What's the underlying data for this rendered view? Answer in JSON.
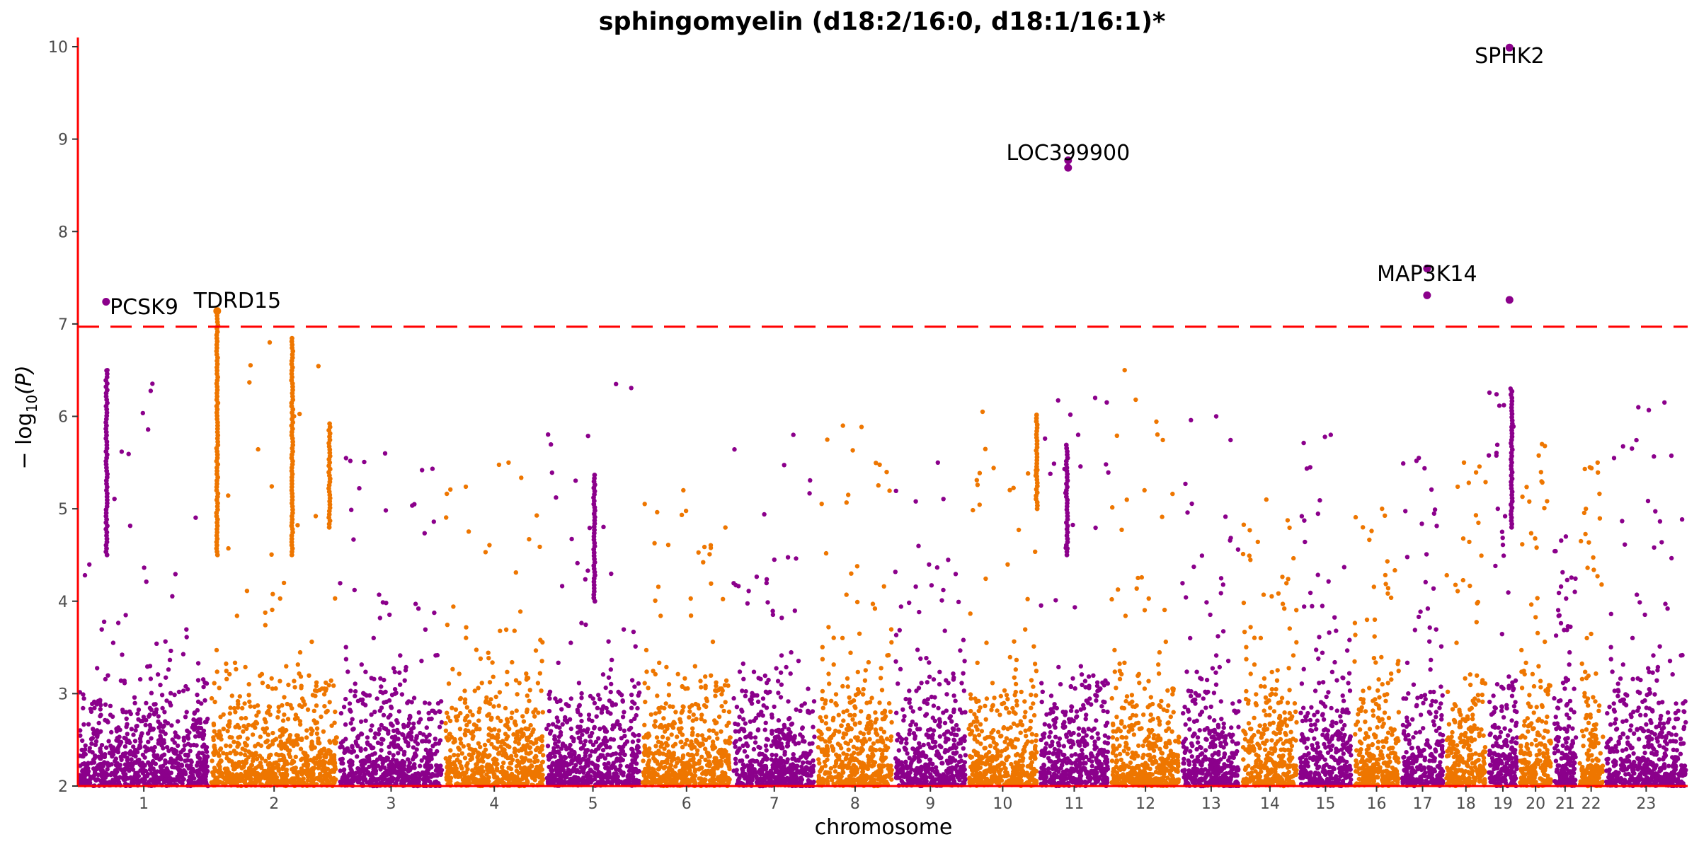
{
  "chart_data": {
    "type": "scatter",
    "subtype": "manhattan",
    "title": "sphingomyelin (d18:2/16:0, d18:1/16:1)*",
    "xlabel": "chromosome",
    "ylabel_prefix": "− log",
    "ylabel_sub": "10",
    "ylabel_suffix": "(P)",
    "ylim": [
      2,
      10.1
    ],
    "yticks": [
      2,
      3,
      4,
      5,
      6,
      7,
      8,
      9,
      10
    ],
    "ytick_labels": [
      "2",
      "3",
      "4",
      "5",
      "6",
      "7",
      "8",
      "9",
      "10"
    ],
    "colors": {
      "odd_chromosome": "#8B008B",
      "even_chromosome": "#EE7600",
      "axis_line": "#ff0000",
      "threshold_line": "#ff0000"
    },
    "significance_threshold": 6.97,
    "chromosomes": [
      {
        "label": "1",
        "start": 0,
        "end": 248,
        "peak": 6.5,
        "color": "odd"
      },
      {
        "label": "2",
        "start": 248,
        "end": 490,
        "peak": 6.8,
        "color": "even"
      },
      {
        "label": "3",
        "start": 490,
        "end": 688,
        "peak": 5.6,
        "color": "odd"
      },
      {
        "label": "4",
        "start": 688,
        "end": 878,
        "peak": 5.5,
        "color": "even"
      },
      {
        "label": "5",
        "start": 878,
        "end": 1059,
        "peak": 6.35,
        "color": "odd"
      },
      {
        "label": "6",
        "start": 1059,
        "end": 1230,
        "peak": 5.2,
        "color": "even"
      },
      {
        "label": "7",
        "start": 1230,
        "end": 1389,
        "peak": 5.8,
        "color": "odd"
      },
      {
        "label": "8",
        "start": 1389,
        "end": 1534,
        "peak": 5.9,
        "color": "even"
      },
      {
        "label": "9",
        "start": 1534,
        "end": 1672,
        "peak": 5.5,
        "color": "odd"
      },
      {
        "label": "10",
        "start": 1672,
        "end": 1806,
        "peak": 6.05,
        "color": "even"
      },
      {
        "label": "11",
        "start": 1806,
        "end": 1941,
        "peak": 6.2,
        "color": "odd"
      },
      {
        "label": "12",
        "start": 1941,
        "end": 2074,
        "peak": 6.5,
        "color": "even"
      },
      {
        "label": "13",
        "start": 2074,
        "end": 2188,
        "peak": 6.0,
        "color": "odd"
      },
      {
        "label": "14",
        "start": 2188,
        "end": 2295,
        "peak": 5.1,
        "color": "even"
      },
      {
        "label": "15",
        "start": 2295,
        "end": 2397,
        "peak": 5.8,
        "color": "odd"
      },
      {
        "label": "16",
        "start": 2397,
        "end": 2487,
        "peak": 5.0,
        "color": "even"
      },
      {
        "label": "17",
        "start": 2487,
        "end": 2570,
        "peak": 5.55,
        "color": "odd"
      },
      {
        "label": "18",
        "start": 2570,
        "end": 2650,
        "peak": 5.5,
        "color": "even"
      },
      {
        "label": "19",
        "start": 2650,
        "end": 2709,
        "peak": 6.3,
        "color": "odd"
      },
      {
        "label": "20",
        "start": 2709,
        "end": 2773,
        "peak": 5.7,
        "color": "even"
      },
      {
        "label": "21",
        "start": 2773,
        "end": 2820,
        "peak": 4.7,
        "color": "odd"
      },
      {
        "label": "22",
        "start": 2820,
        "end": 2871,
        "peak": 5.5,
        "color": "even"
      },
      {
        "label": "23",
        "start": 2871,
        "end": 3027,
        "peak": 6.15,
        "color": "odd"
      }
    ],
    "x_range": [
      0,
      3027
    ],
    "highlight_columns": [
      {
        "chromosome": "2",
        "position": 262,
        "from": 4.5,
        "to": 7.15
      },
      {
        "chromosome": "2",
        "position": 403,
        "from": 4.5,
        "to": 6.85
      },
      {
        "chromosome": "2",
        "position": 473,
        "from": 4.8,
        "to": 5.95
      },
      {
        "chromosome": "1",
        "position": 54,
        "from": 4.5,
        "to": 6.5
      },
      {
        "chromosome": "11",
        "position": 1860,
        "from": 4.5,
        "to": 5.7
      },
      {
        "chromosome": "10",
        "position": 1803,
        "from": 5.0,
        "to": 6.05
      },
      {
        "chromosome": "19",
        "position": 2696,
        "from": 4.8,
        "to": 6.3
      },
      {
        "chromosome": "5",
        "position": 971,
        "from": 4.0,
        "to": 5.4
      }
    ],
    "hits": [
      {
        "label": "PCSK9",
        "chromosome": "1",
        "x": 53,
        "y": 7.24,
        "label_x": 60,
        "label_y": 7.19,
        "anchor": "start"
      },
      {
        "label": "TDRD15",
        "chromosome": "2",
        "x": 262,
        "y": 7.14,
        "label_x": 300,
        "label_y": 7.26,
        "anchor": "middle"
      },
      {
        "label": "LOC399900",
        "chromosome": "11",
        "x": 1862,
        "y": 8.77,
        "label_x": 1862,
        "label_y": 8.86,
        "anchor": "middle"
      },
      {
        "label": "MAP3K14",
        "chromosome": "17",
        "x": 2537,
        "y": 7.31,
        "label_x": 2537,
        "label_y": 7.55,
        "anchor": "middle"
      },
      {
        "label": "SPHK2",
        "chromosome": "19",
        "x": 2692,
        "y": 9.99,
        "label_x": 2692,
        "label_y": 9.91,
        "anchor": "middle"
      }
    ],
    "extra_points": [
      {
        "chromosome": "11",
        "x": 1862,
        "y": 8.69
      },
      {
        "chromosome": "17",
        "x": 2537,
        "y": 7.6
      },
      {
        "chromosome": "19",
        "x": 2692,
        "y": 7.26
      }
    ]
  }
}
